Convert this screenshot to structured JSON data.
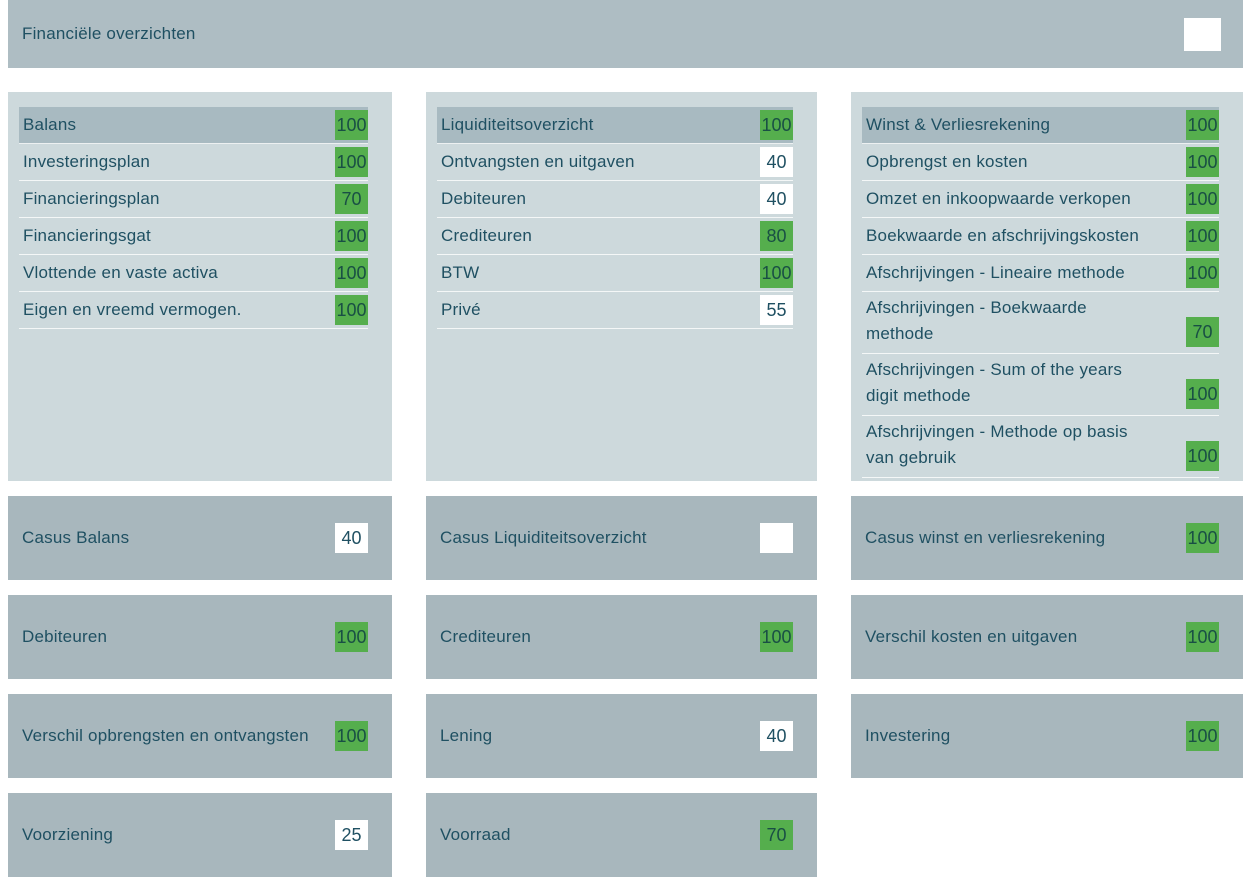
{
  "header": {
    "title": "Financiële overzichten",
    "badge": {
      "score": "",
      "variant": "empty"
    }
  },
  "colors": {
    "header_bg": "#aebdc3",
    "panel_bg": "#cdd9dc",
    "card_bg": "#a8b7bd",
    "highlight_row_bg": "#a8bac1",
    "badge_green": "#55ae4d",
    "badge_green_text": "#194f44",
    "badge_white": "#ffffff",
    "text": "#1f5062"
  },
  "panels": [
    {
      "rows": [
        {
          "label": "Balans",
          "score": "100",
          "variant": "green",
          "highlight": true
        },
        {
          "label": "Investeringsplan",
          "score": "100",
          "variant": "green"
        },
        {
          "label": "Financieringsplan",
          "score": "70",
          "variant": "green"
        },
        {
          "label": "Financieringsgat",
          "score": "100",
          "variant": "green"
        },
        {
          "label": "Vlottende en vaste activa",
          "score": "100",
          "variant": "green"
        },
        {
          "label": "Eigen en vreemd vermogen.",
          "score": "100",
          "variant": "green"
        }
      ]
    },
    {
      "rows": [
        {
          "label": "Liquiditeitsoverzicht",
          "score": "100",
          "variant": "green",
          "highlight": true
        },
        {
          "label": "Ontvangsten en uitgaven",
          "score": "40",
          "variant": "white"
        },
        {
          "label": "Debiteuren",
          "score": "40",
          "variant": "white"
        },
        {
          "label": "Crediteuren",
          "score": "80",
          "variant": "green"
        },
        {
          "label": "BTW",
          "score": "100",
          "variant": "green"
        },
        {
          "label": "Privé",
          "score": "55",
          "variant": "white"
        }
      ]
    },
    {
      "rows": [
        {
          "label": "Winst & Verliesrekening",
          "score": "100",
          "variant": "green",
          "highlight": true
        },
        {
          "label": "Opbrengst en kosten",
          "score": "100",
          "variant": "green"
        },
        {
          "label": "Omzet en inkoopwaarde verkopen",
          "score": "100",
          "variant": "green"
        },
        {
          "label": "Boekwaarde en afschrijvingskosten",
          "score": "100",
          "variant": "green"
        },
        {
          "label": "Afschrijvingen - Lineaire methode",
          "score": "100",
          "variant": "green"
        },
        {
          "label": "Afschrijvingen - Boekwaarde methode",
          "score": "70",
          "variant": "green",
          "multiline": true
        },
        {
          "label": "Afschrijvingen - Sum of the years digit methode",
          "score": "100",
          "variant": "green",
          "multiline": true
        },
        {
          "label": "Afschrijvingen - Methode op basis van gebruik",
          "score": "100",
          "variant": "green",
          "multiline": true
        }
      ]
    }
  ],
  "cards": [
    [
      {
        "label": "Casus Balans",
        "score": "40",
        "variant": "white"
      },
      {
        "label": "Casus Liquiditeitsoverzicht",
        "score": "",
        "variant": "empty"
      },
      {
        "label": "Casus winst en verliesrekening",
        "score": "100",
        "variant": "green"
      }
    ],
    [
      {
        "label": "Debiteuren",
        "score": "100",
        "variant": "green"
      },
      {
        "label": "Crediteuren",
        "score": "100",
        "variant": "green"
      },
      {
        "label": "Verschil kosten en uitgaven",
        "score": "100",
        "variant": "green"
      }
    ],
    [
      {
        "label": "Verschil opbrengsten en ontvangsten",
        "score": "100",
        "variant": "green"
      },
      {
        "label": "Lening",
        "score": "40",
        "variant": "white"
      },
      {
        "label": "Investering",
        "score": "100",
        "variant": "green"
      }
    ],
    [
      {
        "label": "Voorziening",
        "score": "25",
        "variant": "white"
      },
      {
        "label": "Voorraad",
        "score": "70",
        "variant": "green"
      }
    ]
  ]
}
